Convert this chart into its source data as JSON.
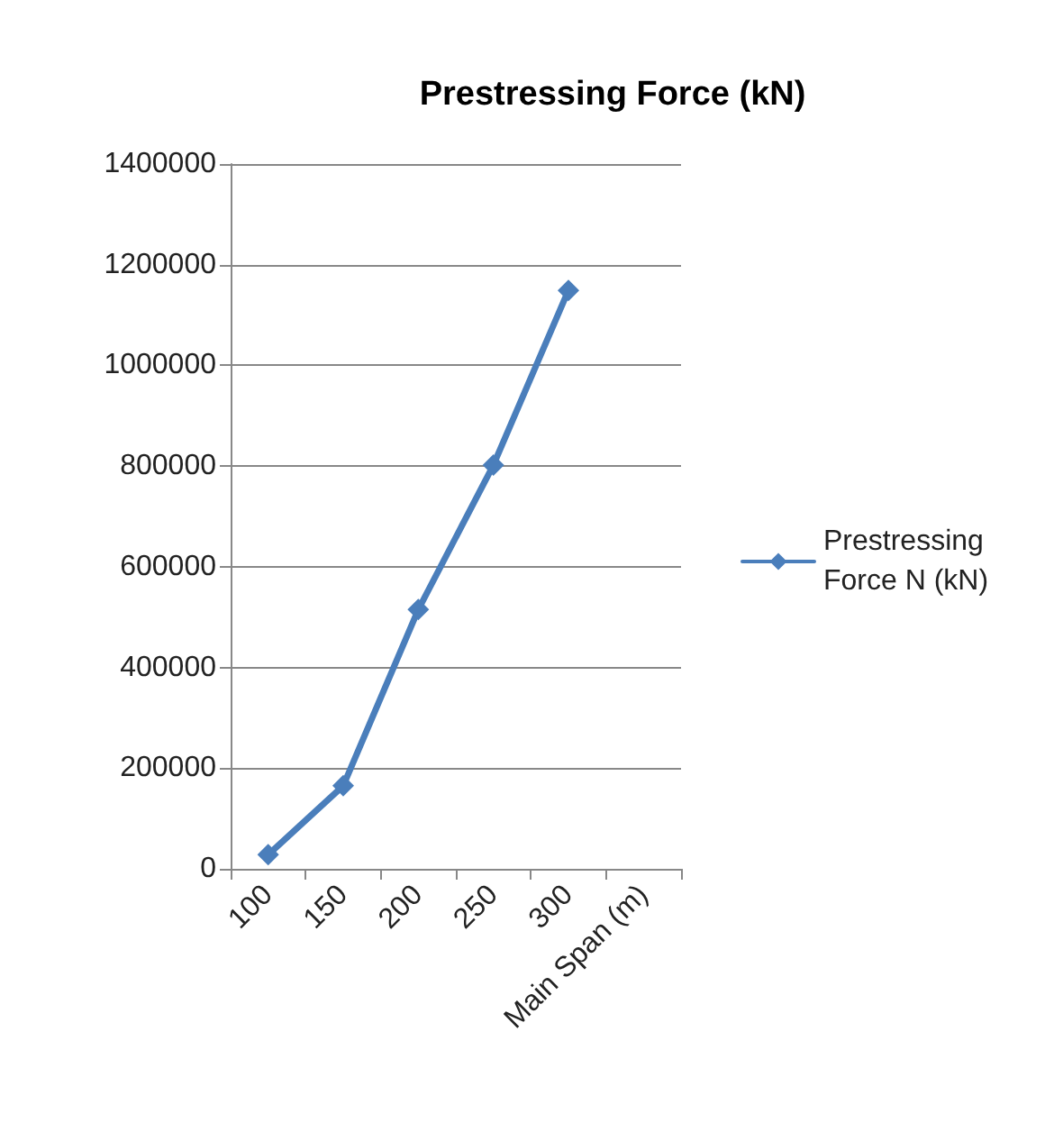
{
  "chart_data": {
    "type": "line",
    "title": "Prestressing Force (kN)",
    "categories": [
      "100",
      "150",
      "200",
      "250",
      "300",
      "Main Span (m)"
    ],
    "series": [
      {
        "name": "Prestressing Force N (kN)",
        "color": "#4a7ebb",
        "values": [
          28000,
          165000,
          515000,
          802000,
          1149000,
          null
        ]
      }
    ],
    "ylim": [
      0,
      1400000
    ],
    "yticks": [
      0,
      200000,
      400000,
      600000,
      800000,
      1000000,
      1200000,
      1400000
    ],
    "grid": "y",
    "legend": "right",
    "marker": "diamond",
    "line_style": "solid"
  }
}
